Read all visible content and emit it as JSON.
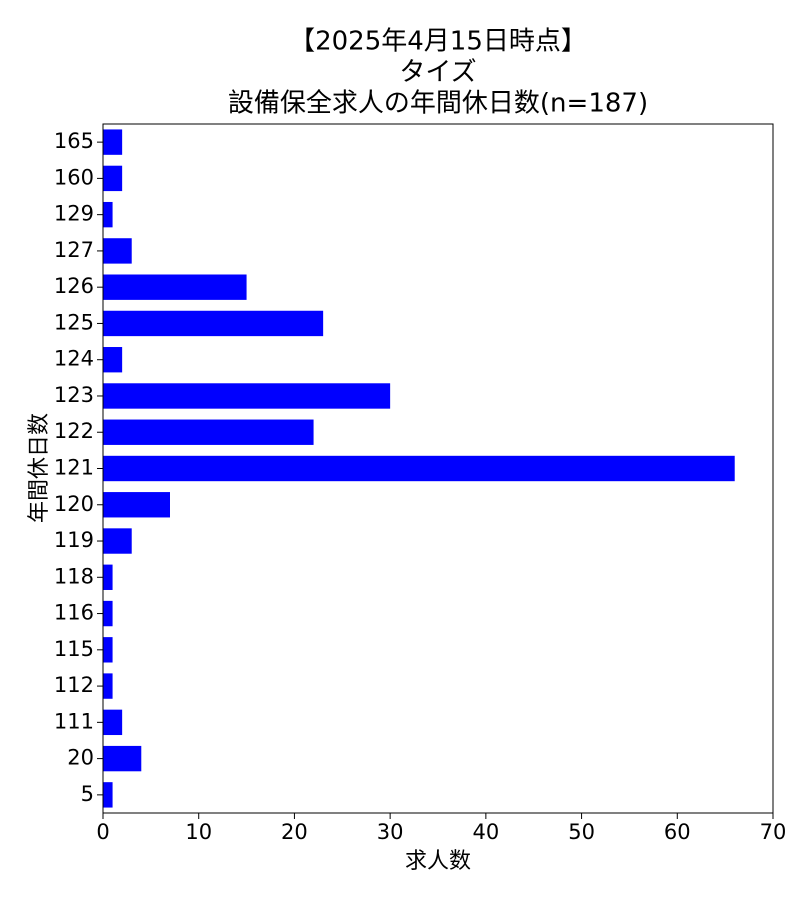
{
  "chart_data": {
    "type": "barh",
    "title": [
      "【2025年4月15日時点】",
      "タイズ",
      "設備保全求人の年間休日数(n=187)"
    ],
    "xlabel": "求人数",
    "ylabel": "年間休日数",
    "categories": [
      "165",
      "160",
      "129",
      "127",
      "126",
      "125",
      "124",
      "123",
      "122",
      "121",
      "120",
      "119",
      "118",
      "116",
      "115",
      "112",
      "111",
      "20",
      "5"
    ],
    "values": [
      2,
      2,
      1,
      3,
      15,
      23,
      2,
      30,
      22,
      66,
      7,
      3,
      1,
      1,
      1,
      1,
      2,
      4,
      1
    ],
    "color": "#0000ff",
    "xlim": [
      0,
      70
    ],
    "xticks": [
      0,
      10,
      20,
      30,
      40,
      50,
      60,
      70
    ],
    "grid": false
  }
}
